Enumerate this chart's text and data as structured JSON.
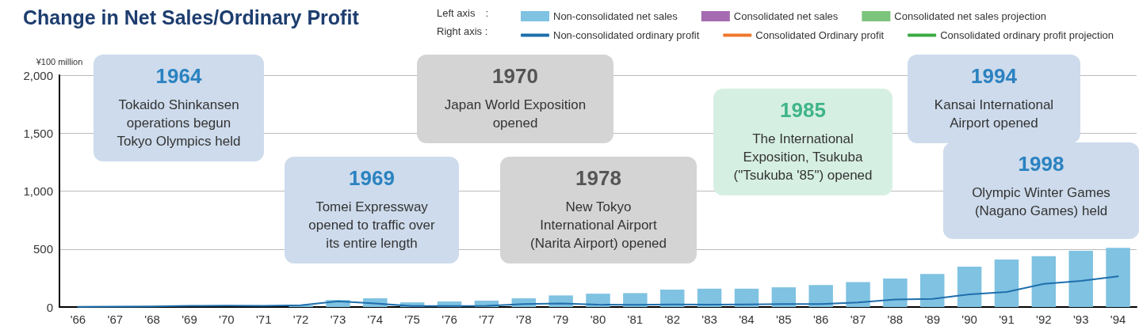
{
  "chart_data": {
    "type": "bar",
    "title": "Change in Net Sales/Ordinary Profit",
    "ylabel": "¥100 million",
    "categories": [
      "'66",
      "'67",
      "'68",
      "'69",
      "'70",
      "'71",
      "'72",
      "'73",
      "'74",
      "'75",
      "'76",
      "'77",
      "'78",
      "'79",
      "'80",
      "'81",
      "'82",
      "'83",
      "'84",
      "'85",
      "'86",
      "'87",
      "'88",
      "'89",
      "'90",
      "'91",
      "'92",
      "'93",
      "'94"
    ],
    "series": [
      {
        "name": "Non-consolidated net sales",
        "color": "#7fc2e2",
        "values": [
          null,
          5,
          null,
          null,
          null,
          null,
          15,
          60,
          75,
          40,
          48,
          55,
          75,
          100,
          115,
          120,
          150,
          158,
          158,
          170,
          190,
          215,
          245,
          285,
          348,
          410,
          438,
          485,
          510
        ]
      },
      {
        "name": "Consolidated net sales",
        "color": "#a56bb0",
        "values": [
          null,
          null,
          null,
          null,
          null,
          null,
          null,
          null,
          null,
          null,
          null,
          null,
          null,
          null,
          null,
          null,
          null,
          null,
          null,
          null,
          null,
          null,
          null,
          null,
          null,
          null,
          null,
          null,
          null
        ]
      },
      {
        "name": "Consolidated net sales projection",
        "color": "#7cc47c",
        "values": [
          null,
          null,
          null,
          null,
          null,
          null,
          null,
          null,
          null,
          null,
          null,
          null,
          null,
          null,
          null,
          null,
          null,
          null,
          null,
          null,
          null,
          null,
          null,
          null,
          null,
          null,
          null,
          null,
          null
        ]
      },
      {
        "name": "Non-consolidated ordinary profit",
        "type": "line",
        "color": "#1f6fad",
        "values": [
          2,
          3,
          5,
          10,
          12,
          10,
          15,
          50,
          30,
          8,
          8,
          10,
          25,
          30,
          20,
          18,
          22,
          20,
          22,
          25,
          25,
          40,
          65,
          70,
          110,
          130,
          200,
          225,
          265
        ]
      },
      {
        "name": "Consolidated Ordinary profit",
        "type": "line",
        "color": "#f0782d",
        "values": [
          null,
          null,
          null,
          null,
          null,
          null,
          null,
          null,
          null,
          null,
          null,
          null,
          null,
          null,
          null,
          null,
          null,
          null,
          null,
          null,
          null,
          null,
          null,
          null,
          null,
          null,
          null,
          null,
          null
        ]
      },
      {
        "name": "Consolidated ordinary profit projection",
        "type": "line",
        "color": "#3aaa45",
        "values": [
          null,
          null,
          null,
          null,
          null,
          null,
          null,
          null,
          null,
          null,
          null,
          null,
          null,
          null,
          null,
          null,
          null,
          null,
          null,
          null,
          null,
          null,
          null,
          null,
          null,
          null,
          null,
          null,
          null
        ]
      }
    ],
    "ylim": [
      0,
      2000
    ],
    "yticks": [
      0,
      500,
      {
        "value": 1000,
        "label": "1,000"
      },
      {
        "value": 1500,
        "label": "1,500"
      },
      {
        "value": 2000,
        "label": "2,000"
      }
    ],
    "grid": "y",
    "legend": "top right",
    "marker": "none",
    "line_style": "solid",
    "annotations": [
      "Left axis　:",
      "Right axis :",
      "1964\nTokaido Shinkansen\noperations begun\nTokyo Olympics held",
      "1969\nTomei Expressway\nopened to traffic over\nits entire length",
      "1970\nJapan World Exposition\nopened",
      "1978\nNew Tokyo\nInternational Airport\n(Narita Airport) opened",
      "1985\nThe International\nExposition, Tsukuba\n(\"Tsukuba '85\") opened",
      "1994\nKansai International\nAirport opened",
      "1998\nOlympic Winter Games\n(Nagano Games) held"
    ]
  }
}
